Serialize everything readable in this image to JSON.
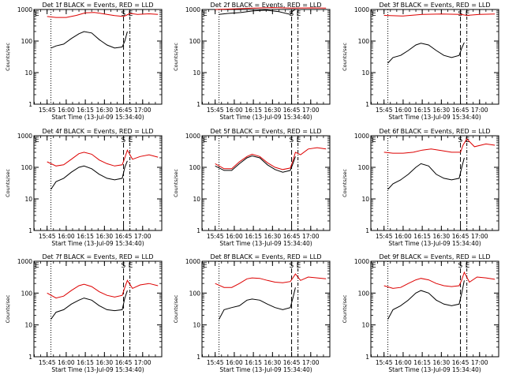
{
  "chart_data": {
    "type": "line",
    "y_scale": "log",
    "ylim": [
      1,
      1000
    ],
    "y_ticks": [
      1,
      10,
      100,
      1000
    ],
    "y_tick_labels": [
      "1",
      "10",
      "100",
      "1000"
    ],
    "x_tick_labels": [
      "15:45",
      "16:00",
      "16:15",
      "16:30",
      "16:45",
      "17:00"
    ],
    "xlabel": "Start Time (13-Jul-09 15:34:40)",
    "ylabel": "Counts/sec",
    "grid": false,
    "markers": {
      "e_left": "E",
      "s": "S",
      "e_right": "E"
    },
    "colors": {
      "events": "#000000",
      "lld": "#dd0000"
    },
    "panels": [
      {
        "title": "Det 1f BLACK = Events, RED = LLD",
        "series": [
          {
            "key": "events",
            "x": [
              "15:48",
              "15:52",
              "15:58",
              "16:04",
              "16:10",
              "16:14",
              "16:20",
              "16:26",
              "16:32",
              "16:38",
              "16:44",
              "16:46",
              "16:48"
            ],
            "values": [
              60,
              70,
              80,
              120,
              170,
              200,
              180,
              110,
              75,
              60,
              65,
              100,
              200
            ]
          },
          {
            "key": "lld",
            "x": [
              "15:45",
              "15:52",
              "16:00",
              "16:08",
              "16:15",
              "16:22",
              "16:30",
              "16:38",
              "16:45",
              "16:47",
              "16:50",
              "16:56",
              "17:05",
              "17:12"
            ],
            "values": [
              600,
              560,
              560,
              650,
              780,
              810,
              720,
              640,
              600,
              650,
              750,
              700,
              730,
              700
            ]
          }
        ]
      },
      {
        "title": "Det 2f BLACK = Events, RED = LLD",
        "series": [
          {
            "key": "events",
            "x": [
              "15:48",
              "15:55",
              "16:05",
              "16:15",
              "16:25",
              "16:35",
              "16:44",
              "16:46",
              "16:48"
            ],
            "values": [
              700,
              750,
              800,
              900,
              950,
              850,
              700,
              900,
              1000
            ]
          },
          {
            "key": "lld",
            "x": [
              "15:45",
              "16:00",
              "16:15",
              "16:30",
              "16:45",
              "17:00",
              "17:12"
            ],
            "values": [
              1000,
              1050,
              1100,
              1150,
              1100,
              1120,
              1100
            ]
          }
        ]
      },
      {
        "title": "Det 3f BLACK = Events, RED = LLD",
        "series": [
          {
            "key": "events",
            "x": [
              "15:48",
              "15:52",
              "15:58",
              "16:04",
              "16:10",
              "16:14",
              "16:20",
              "16:26",
              "16:32",
              "16:38",
              "16:44",
              "16:46",
              "16:48"
            ],
            "values": [
              20,
              30,
              35,
              50,
              75,
              85,
              75,
              50,
              35,
              30,
              35,
              60,
              90
            ]
          },
          {
            "key": "lld",
            "x": [
              "15:45",
              "16:00",
              "16:15",
              "16:30",
              "16:45",
              "16:50",
              "17:00",
              "17:12"
            ],
            "values": [
              650,
              620,
              700,
              720,
              700,
              650,
              700,
              720
            ]
          }
        ]
      },
      {
        "title": "Det 4f BLACK = Events, RED = LLD",
        "series": [
          {
            "key": "events",
            "x": [
              "15:48",
              "15:52",
              "15:58",
              "16:04",
              "16:10",
              "16:14",
              "16:20",
              "16:26",
              "16:32",
              "16:38",
              "16:44",
              "16:46",
              "16:48"
            ],
            "values": [
              20,
              35,
              45,
              70,
              100,
              110,
              90,
              60,
              45,
              40,
              45,
              100,
              160
            ]
          },
          {
            "key": "lld",
            "x": [
              "15:45",
              "15:52",
              "15:58",
              "16:04",
              "16:10",
              "16:14",
              "16:20",
              "16:26",
              "16:32",
              "16:38",
              "16:44",
              "16:46",
              "16:48",
              "16:52",
              "16:58",
              "17:05",
              "17:12"
            ],
            "values": [
              150,
              110,
              120,
              180,
              270,
              300,
              260,
              170,
              130,
              110,
              120,
              200,
              350,
              180,
              220,
              250,
              210
            ]
          }
        ]
      },
      {
        "title": "Det 5f BLACK = Events, RED = LLD",
        "series": [
          {
            "key": "events",
            "x": [
              "15:45",
              "15:52",
              "15:58",
              "16:04",
              "16:10",
              "16:14",
              "16:20",
              "16:26",
              "16:32",
              "16:38",
              "16:44",
              "16:46",
              "16:48"
            ],
            "values": [
              110,
              80,
              80,
              130,
              200,
              230,
              200,
              120,
              85,
              70,
              80,
              130,
              220
            ]
          },
          {
            "key": "lld",
            "x": [
              "15:45",
              "15:52",
              "15:58",
              "16:04",
              "16:10",
              "16:14",
              "16:20",
              "16:26",
              "16:32",
              "16:38",
              "16:44",
              "16:46",
              "16:48",
              "16:52",
              "16:58",
              "17:05",
              "17:12"
            ],
            "values": [
              130,
              90,
              90,
              150,
              220,
              260,
              220,
              140,
              100,
              85,
              95,
              160,
              300,
              250,
              380,
              420,
              380
            ]
          }
        ]
      },
      {
        "title": "Det 6f BLACK = Events, RED = LLD",
        "series": [
          {
            "key": "events",
            "x": [
              "15:48",
              "15:52",
              "15:58",
              "16:04",
              "16:10",
              "16:14",
              "16:20",
              "16:26",
              "16:32",
              "16:38",
              "16:44",
              "16:46",
              "16:48"
            ],
            "values": [
              20,
              30,
              40,
              60,
              100,
              130,
              110,
              60,
              45,
              40,
              45,
              100,
              200
            ]
          },
          {
            "key": "lld",
            "x": [
              "15:45",
              "15:52",
              "16:00",
              "16:08",
              "16:15",
              "16:22",
              "16:30",
              "16:38",
              "16:45",
              "16:47",
              "16:50",
              "16:56",
              "17:05",
              "17:12"
            ],
            "values": [
              300,
              280,
              280,
              300,
              350,
              380,
              340,
              300,
              300,
              500,
              800,
              450,
              550,
              500
            ]
          }
        ]
      },
      {
        "title": "Det 7f BLACK = Events, RED = LLD",
        "series": [
          {
            "key": "events",
            "x": [
              "15:48",
              "15:52",
              "15:58",
              "16:04",
              "16:10",
              "16:14",
              "16:20",
              "16:26",
              "16:32",
              "16:38",
              "16:44",
              "16:46",
              "16:48"
            ],
            "values": [
              15,
              25,
              30,
              45,
              60,
              70,
              60,
              40,
              30,
              28,
              30,
              70,
              120
            ]
          },
          {
            "key": "lld",
            "x": [
              "15:45",
              "15:52",
              "15:58",
              "16:04",
              "16:10",
              "16:14",
              "16:20",
              "16:26",
              "16:32",
              "16:38",
              "16:44",
              "16:46",
              "16:48",
              "16:52",
              "16:58",
              "17:05",
              "17:12"
            ],
            "values": [
              100,
              70,
              80,
              120,
              170,
              190,
              160,
              110,
              85,
              75,
              85,
              150,
              250,
              140,
              180,
              200,
              170
            ]
          }
        ]
      },
      {
        "title": "Det 8f BLACK = Events, RED = LLD",
        "series": [
          {
            "key": "events",
            "x": [
              "15:48",
              "15:52",
              "15:58",
              "16:04",
              "16:10",
              "16:14",
              "16:20",
              "16:26",
              "16:32",
              "16:38",
              "16:44",
              "16:46",
              "16:48"
            ],
            "values": [
              15,
              30,
              35,
              40,
              60,
              65,
              60,
              45,
              35,
              30,
              35,
              70,
              150
            ]
          },
          {
            "key": "lld",
            "x": [
              "15:45",
              "15:52",
              "15:58",
              "16:04",
              "16:10",
              "16:14",
              "16:20",
              "16:26",
              "16:32",
              "16:38",
              "16:44",
              "16:46",
              "16:48",
              "16:52",
              "16:58",
              "17:05",
              "17:12"
            ],
            "values": [
              200,
              150,
              150,
              200,
              280,
              300,
              290,
              250,
              220,
              210,
              230,
              300,
              400,
              250,
              320,
              300,
              280
            ]
          }
        ]
      },
      {
        "title": "Det 9f BLACK = Events, RED = LLD",
        "series": [
          {
            "key": "events",
            "x": [
              "15:48",
              "15:52",
              "15:58",
              "16:04",
              "16:10",
              "16:14",
              "16:20",
              "16:26",
              "16:32",
              "16:38",
              "16:44",
              "16:46",
              "16:48"
            ],
            "values": [
              15,
              30,
              40,
              60,
              100,
              120,
              100,
              60,
              45,
              40,
              45,
              100,
              250
            ]
          },
          {
            "key": "lld",
            "x": [
              "15:45",
              "15:52",
              "15:58",
              "16:04",
              "16:10",
              "16:14",
              "16:20",
              "16:26",
              "16:32",
              "16:38",
              "16:44",
              "16:46",
              "16:48",
              "16:52",
              "16:58",
              "17:05",
              "17:12"
            ],
            "values": [
              170,
              140,
              150,
              200,
              260,
              290,
              260,
              200,
              170,
              160,
              170,
              260,
              450,
              220,
              320,
              300,
              270
            ]
          }
        ]
      }
    ]
  }
}
